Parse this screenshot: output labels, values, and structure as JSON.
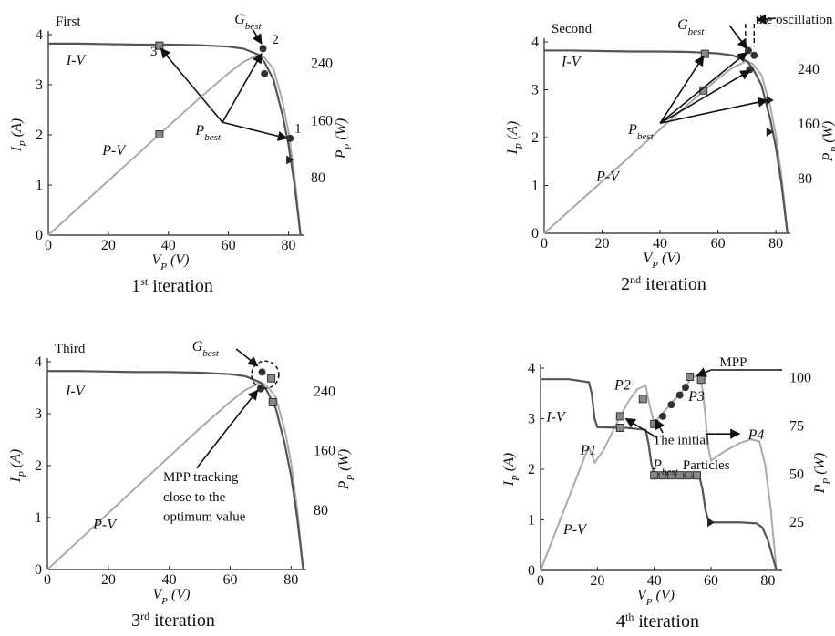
{
  "chart_data": [
    {
      "type": "line",
      "tag": "First",
      "caption_base": "1",
      "caption_sup": "st",
      "caption_rest": " iteration",
      "xlabel_main": "V",
      "xlabel_sub": "P",
      "xlabel_unit": " (V)",
      "ylabel_main": "I",
      "ylabel_sub": "P",
      "ylabel_unit": " (A)",
      "y2label_main": "P",
      "y2label_sub": "P",
      "y2label_unit": " (W)",
      "xlim": [
        0,
        85
      ],
      "ylim": [
        0,
        4
      ],
      "y2lim": [
        0,
        280
      ],
      "xticks": [
        "0",
        "20",
        "40",
        "60",
        "80"
      ],
      "yticks": [
        "0",
        "1",
        "2",
        "3",
        "4"
      ],
      "y2ticks": [
        "80",
        "160",
        "240"
      ],
      "series": [
        {
          "name": "I-V",
          "x": [
            0,
            10,
            20,
            30,
            40,
            50,
            60,
            65,
            70,
            72,
            75,
            78,
            80,
            82,
            83,
            84
          ],
          "y": [
            3.82,
            3.82,
            3.81,
            3.8,
            3.8,
            3.79,
            3.76,
            3.72,
            3.6,
            3.45,
            3.1,
            2.4,
            1.8,
            1.0,
            0.5,
            0
          ]
        },
        {
          "name": "P-V",
          "x": [
            0,
            10,
            20,
            30,
            40,
            50,
            60,
            65,
            70,
            72,
            75,
            78,
            80,
            82,
            83,
            84
          ],
          "y": [
            0,
            38,
            76,
            114,
            152,
            190,
            226,
            242,
            252,
            248,
            232,
            187,
            144,
            82,
            42,
            0
          ]
        }
      ],
      "annotations": [
        "3",
        "2",
        "1"
      ],
      "gbest_main": "G",
      "gbest_sub": "best",
      "pbest_main": "P",
      "pbest_sub": "best"
    },
    {
      "type": "line",
      "tag": "Second",
      "caption_base": "2",
      "caption_sup": "nd",
      "caption_rest": " iteration",
      "xlabel_main": "V",
      "xlabel_sub": "P",
      "xlabel_unit": " (V)",
      "ylabel_main": "I",
      "ylabel_sub": "P",
      "ylabel_unit": " (A)",
      "y2label_main": "P",
      "y2label_sub": "P",
      "y2label_unit": " (W)",
      "xlim": [
        0,
        85
      ],
      "ylim": [
        0,
        4
      ],
      "y2lim": [
        0,
        280
      ],
      "xticks": [
        "0",
        "20",
        "40",
        "60",
        "80"
      ],
      "yticks": [
        "0",
        "1",
        "2",
        "3",
        "4"
      ],
      "y2ticks": [
        "80",
        "160",
        "240"
      ],
      "series": [
        {
          "name": "I-V",
          "x": [
            0,
            10,
            20,
            30,
            40,
            50,
            60,
            65,
            70,
            72,
            75,
            78,
            80,
            82,
            83,
            84
          ],
          "y": [
            3.82,
            3.82,
            3.81,
            3.8,
            3.8,
            3.79,
            3.76,
            3.72,
            3.6,
            3.45,
            3.1,
            2.4,
            1.8,
            1.0,
            0.5,
            0
          ]
        },
        {
          "name": "P-V",
          "x": [
            0,
            10,
            20,
            30,
            40,
            50,
            60,
            65,
            70,
            72,
            75,
            78,
            80,
            82,
            83,
            84
          ],
          "y": [
            0,
            38,
            76,
            114,
            152,
            190,
            226,
            242,
            252,
            248,
            232,
            187,
            144,
            82,
            42,
            0
          ]
        }
      ],
      "oscillation_text": "the oscillation",
      "gbest_main": "G",
      "gbest_sub": "best",
      "pbest_main": "P",
      "pbest_sub": "best"
    },
    {
      "type": "line",
      "tag": "Third",
      "caption_base": "3",
      "caption_sup": "rd",
      "caption_rest": " iteration",
      "xlabel_main": "V",
      "xlabel_sub": "P",
      "xlabel_unit": " (V)",
      "ylabel_main": "I",
      "ylabel_sub": "P",
      "ylabel_unit": " (A)",
      "y2label_main": "P",
      "y2label_sub": "P",
      "y2label_unit": " (W)",
      "xlim": [
        0,
        85
      ],
      "ylim": [
        0,
        4
      ],
      "y2lim": [
        0,
        280
      ],
      "xticks": [
        "0",
        "20",
        "40",
        "60",
        "80"
      ],
      "yticks": [
        "0",
        "1",
        "2",
        "3",
        "4"
      ],
      "y2ticks": [
        "80",
        "160",
        "240"
      ],
      "series": [
        {
          "name": "I-V",
          "x": [
            0,
            10,
            20,
            30,
            40,
            50,
            60,
            65,
            70,
            72,
            75,
            78,
            80,
            82,
            83,
            84
          ],
          "y": [
            3.82,
            3.82,
            3.81,
            3.8,
            3.8,
            3.79,
            3.76,
            3.72,
            3.6,
            3.45,
            3.1,
            2.4,
            1.8,
            1.0,
            0.5,
            0
          ]
        },
        {
          "name": "P-V",
          "x": [
            0,
            10,
            20,
            30,
            40,
            50,
            60,
            65,
            70,
            72,
            75,
            78,
            80,
            82,
            83,
            84
          ],
          "y": [
            0,
            38,
            76,
            114,
            152,
            190,
            226,
            242,
            252,
            248,
            232,
            187,
            144,
            82,
            42,
            0
          ]
        }
      ],
      "mpp_note": [
        "MPP   tracking",
        "close    to    the",
        "optimum value"
      ],
      "gbest_main": "G",
      "gbest_sub": "best"
    },
    {
      "type": "line",
      "tag": "",
      "caption_base": "4",
      "caption_sup": "th",
      "caption_rest": " iteration",
      "xlabel_main": "V",
      "xlabel_sub": "P",
      "xlabel_unit": " (V)",
      "ylabel_main": "I",
      "ylabel_sub": "P",
      "ylabel_unit": " (A)",
      "y2label_main": "P",
      "y2label_sub": "P",
      "y2label_unit": " (W)",
      "xlim": [
        0,
        85
      ],
      "ylim": [
        0,
        4
      ],
      "y2lim": [
        0,
        105
      ],
      "xticks": [
        "0",
        "20",
        "40",
        "60",
        "80"
      ],
      "yticks": [
        "0",
        "1",
        "2",
        "3",
        "4"
      ],
      "y2ticks": [
        "25",
        "50",
        "75",
        "100"
      ],
      "series": [
        {
          "name": "I-V",
          "x": [
            0,
            10,
            17,
            18,
            19,
            20,
            30,
            37,
            38,
            39,
            40,
            50,
            56,
            57,
            58,
            59,
            60,
            70,
            76,
            78,
            80,
            81,
            82,
            83
          ],
          "y": [
            3.78,
            3.78,
            3.72,
            3.5,
            3.0,
            2.83,
            2.82,
            2.78,
            2.5,
            2.1,
            1.9,
            1.88,
            1.83,
            1.6,
            1.2,
            1.0,
            0.95,
            0.95,
            0.93,
            0.85,
            0.6,
            0.4,
            0.2,
            0
          ]
        },
        {
          "name": "P-V",
          "x": [
            0,
            5,
            10,
            15,
            17,
            19,
            22,
            25,
            28,
            31,
            34,
            37,
            38,
            40,
            42,
            45,
            48,
            51,
            53,
            55,
            56,
            57,
            58,
            59,
            60,
            65,
            70,
            74,
            77,
            79,
            81,
            83
          ],
          "y": [
            0,
            19,
            38,
            57,
            64,
            56,
            62,
            71,
            80,
            88,
            94,
            96,
            88,
            76,
            80,
            85,
            90,
            95,
            100,
            101,
            100,
            94,
            80,
            64,
            57,
            62,
            66,
            68,
            67,
            55,
            32,
            0
          ]
        }
      ],
      "peaks": [
        "P1",
        "P2",
        "P3",
        "P4"
      ],
      "mpp_text": "MPP",
      "initial_text_1": "The initial",
      "initial_text_2": "Particles",
      "pbest_main": "P",
      "pbest_sub": "best"
    }
  ]
}
